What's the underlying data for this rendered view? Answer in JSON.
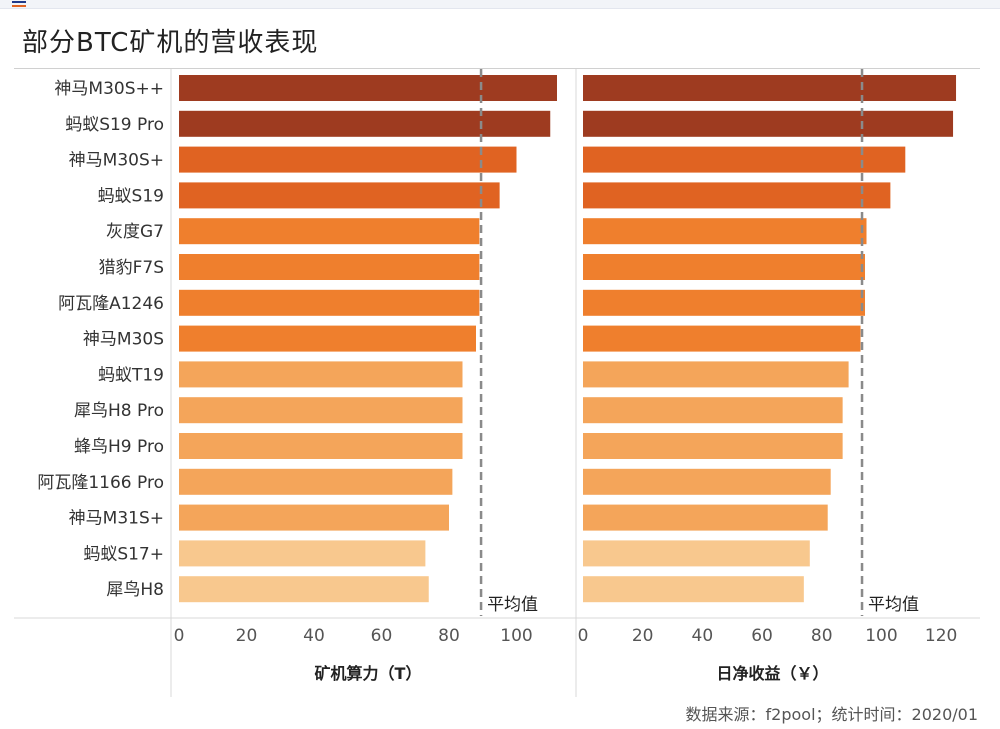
{
  "title": "部分BTC矿机的营收表现",
  "source_note": "数据来源：f2pool；统计时间：2020/01",
  "colors": {
    "dark_red": "#9e3b20",
    "orange_dark": "#e06322",
    "orange": "#ef7f2d",
    "orange_light": "#f4a55a",
    "peach": "#f8c88e",
    "avg_line": "#8a8a8a"
  },
  "chart_data": [
    {
      "type": "bar",
      "orientation": "horizontal",
      "categories": [
        "神马M30S++",
        "蚂蚁S19 Pro",
        "神马M30S+",
        "蚂蚁S19",
        "灰度G7",
        "猎豹F7S",
        "阿瓦隆A1246",
        "神马M30S",
        "蚂蚁T19",
        "犀鸟H8 Pro",
        "蜂鸟H9 Pro",
        "阿瓦隆1166 Pro",
        "神马M31S+",
        "蚂蚁S17+",
        "犀鸟H8"
      ],
      "values": [
        112,
        110,
        100,
        95,
        89,
        89,
        89,
        88,
        84,
        84,
        84,
        81,
        80,
        73,
        74
      ],
      "xlabel": "矿机算力（T）",
      "xlim": [
        0,
        112
      ],
      "xticks": [
        0,
        20,
        40,
        60,
        80,
        100
      ],
      "average": 89.5,
      "average_label": "平均值"
    },
    {
      "type": "bar",
      "orientation": "horizontal",
      "categories": [
        "神马M30S++",
        "蚂蚁S19 Pro",
        "神马M30S+",
        "蚂蚁S19",
        "灰度G7",
        "猎豹F7S",
        "阿瓦隆A1246",
        "神马M30S",
        "蚂蚁T19",
        "犀鸟H8 Pro",
        "蜂鸟H9 Pro",
        "阿瓦隆1166 Pro",
        "神马M31S+",
        "蚂蚁S17+",
        "犀鸟H8"
      ],
      "values": [
        125,
        124,
        108,
        103,
        95,
        94.5,
        94.5,
        93,
        89,
        87,
        87,
        83,
        82,
        76,
        74
      ],
      "xlabel": "日净收益（￥）",
      "xlim": [
        0,
        127
      ],
      "xticks": [
        0,
        20,
        40,
        60,
        80,
        100,
        120
      ],
      "average": 93.5,
      "average_label": "平均值"
    }
  ],
  "bar_color_groups": [
    "dark_red",
    "dark_red",
    "orange_dark",
    "orange_dark",
    "orange",
    "orange",
    "orange",
    "orange",
    "orange_light",
    "orange_light",
    "orange_light",
    "orange_light",
    "orange_light",
    "peach",
    "peach"
  ]
}
